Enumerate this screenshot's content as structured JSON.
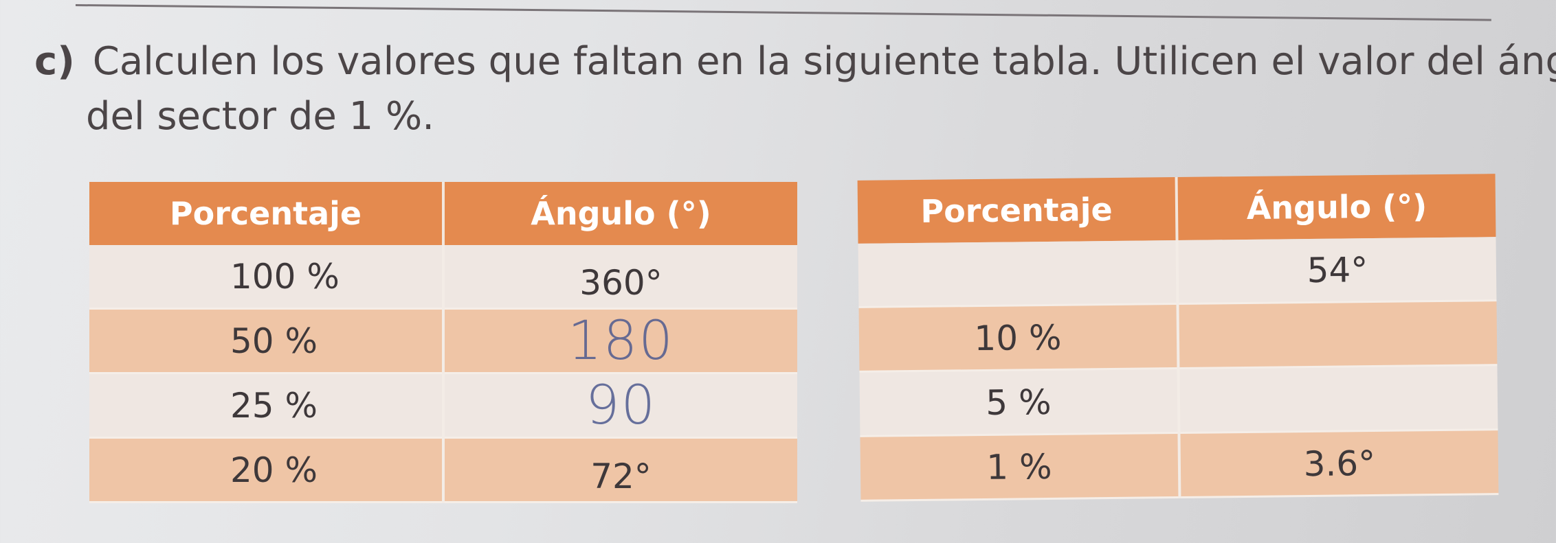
{
  "instruction": {
    "marker": "c)",
    "line1": "Calculen los valores que faltan en la siguiente tabla. Utilicen el valor del ángulo",
    "line2": "del sector de 1 %."
  },
  "table_left": {
    "headers": [
      "Porcentaje",
      "Ángulo (°)"
    ],
    "rows": [
      {
        "percent": "100 %",
        "angle": "360°",
        "handwritten": ""
      },
      {
        "percent": "50 %",
        "angle": "",
        "handwritten": "180"
      },
      {
        "percent": "25 %",
        "angle": "",
        "handwritten": "90"
      },
      {
        "percent": "20 %",
        "angle": "72°",
        "handwritten": ""
      }
    ]
  },
  "table_right": {
    "headers": [
      "Porcentaje",
      "Ángulo (°)"
    ],
    "rows": [
      {
        "percent": "",
        "angle": "54°"
      },
      {
        "percent": "10 %",
        "angle": ""
      },
      {
        "percent": "5 %",
        "angle": ""
      },
      {
        "percent": "1 %",
        "angle": "3.6°"
      }
    ]
  },
  "colors": {
    "header": "#e48a4f",
    "row_light": "#efe7e2",
    "row_tint": "#efc5a6",
    "handwriting": "#4f5b8f"
  }
}
